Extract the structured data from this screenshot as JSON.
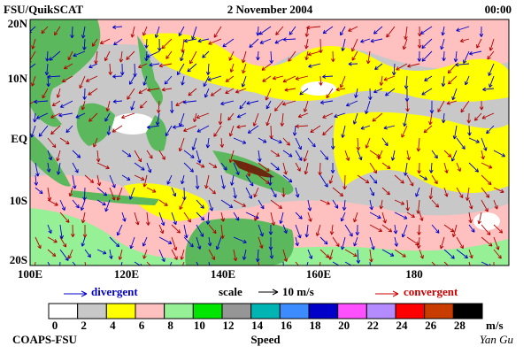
{
  "header": {
    "source": "FSU/QuikSCAT",
    "date": "2 November 2004",
    "time": "00:00"
  },
  "map": {
    "lat_labels": [
      "20N",
      "10N",
      "EQ",
      "10S",
      "20S"
    ],
    "lon_labels": [
      "100E",
      "120E",
      "140E",
      "160E",
      "180"
    ]
  },
  "legend": {
    "divergent": "divergent",
    "scale": "scale",
    "scale_value": "10 m/s",
    "convergent": "convergent"
  },
  "colorbar": {
    "labels": [
      "0",
      "2",
      "4",
      "6",
      "8",
      "10",
      "12",
      "14",
      "16",
      "18",
      "20",
      "22",
      "24",
      "26",
      "28"
    ],
    "colors": [
      "#ffffff",
      "#c8c8c8",
      "#ffff00",
      "#ffc0c0",
      "#96f096",
      "#00e600",
      "#969696",
      "#00b4b4",
      "#3c8cff",
      "#0000c8",
      "#ff50ff",
      "#b48cff",
      "#ff0000",
      "#c83c00",
      "#000000"
    ],
    "unit": "m/s",
    "title": "Speed"
  },
  "footer": {
    "org": "COAPS-FSU",
    "author": "Yan Gu"
  }
}
